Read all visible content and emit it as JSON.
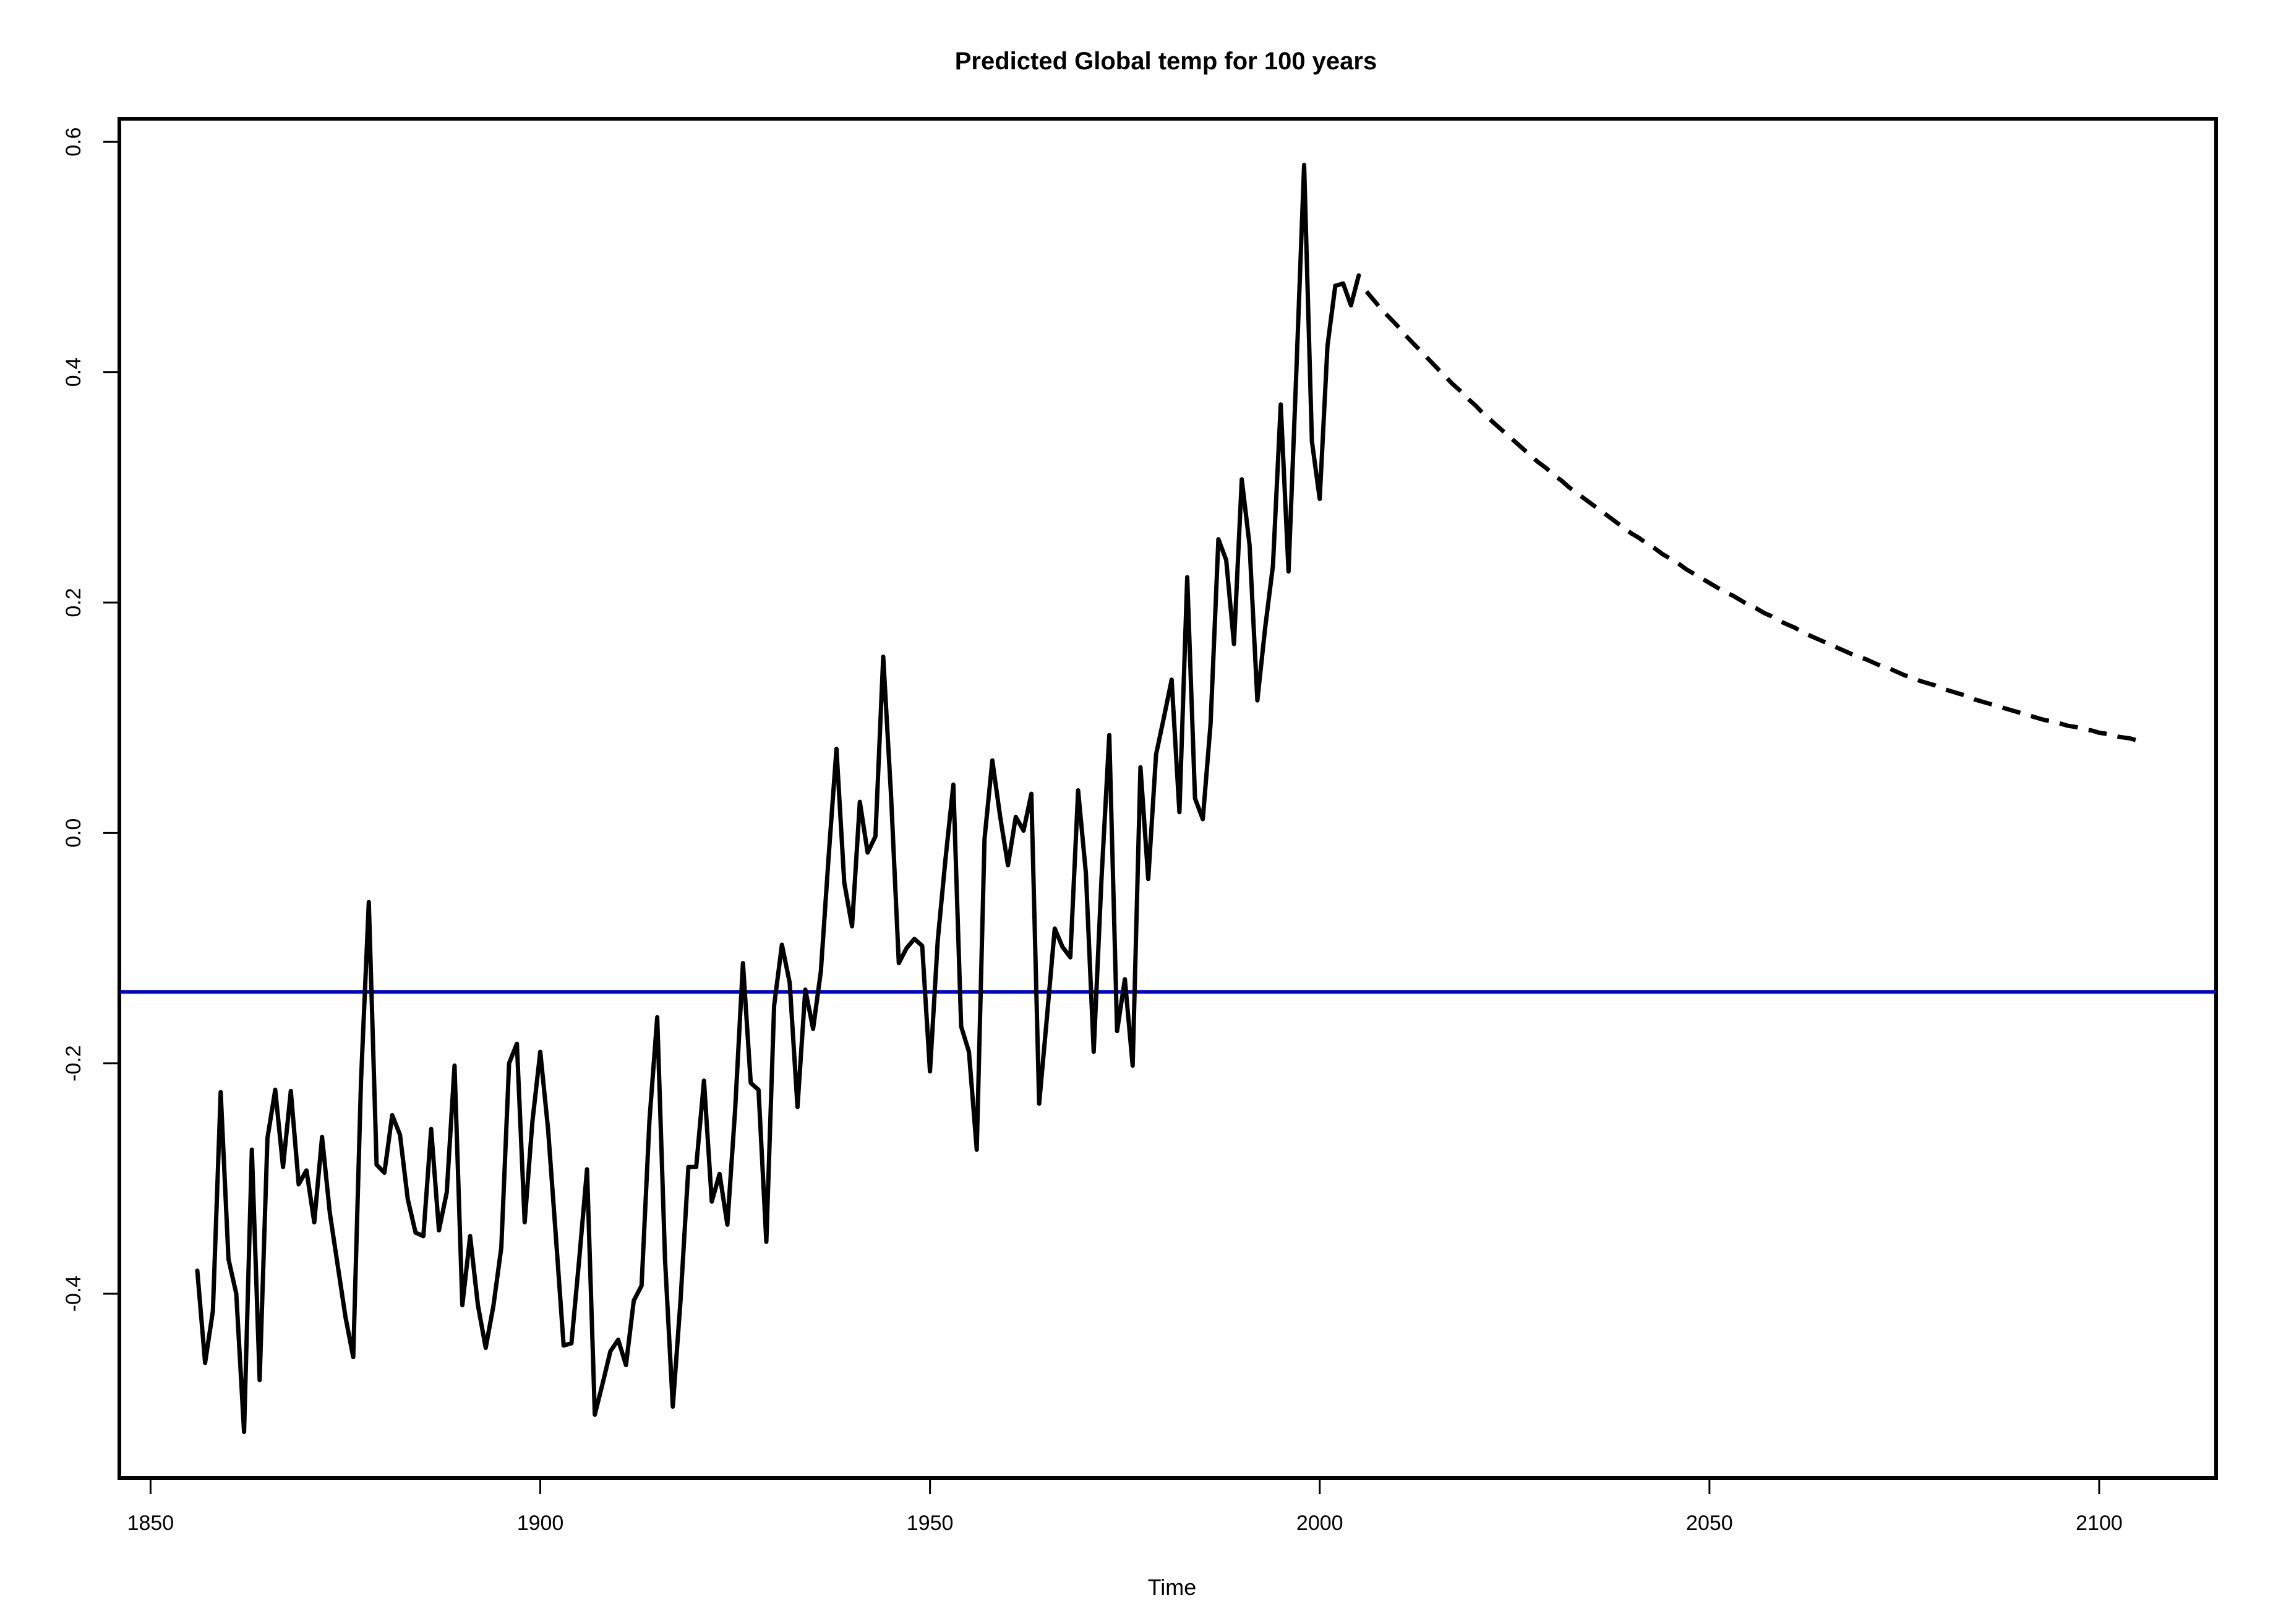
{
  "chart_data": {
    "type": "line",
    "title": "Predicted Global temp for 100 years",
    "xlabel": "Time",
    "ylabel": "",
    "xlim": [
      1846,
      2115
    ],
    "ylim": [
      -0.56,
      0.62
    ],
    "x_ticks": [
      {
        "value": 1850,
        "label": "1850"
      },
      {
        "value": 1900,
        "label": "1900"
      },
      {
        "value": 1950,
        "label": "1950"
      },
      {
        "value": 2000,
        "label": "2000"
      },
      {
        "value": 2050,
        "label": "2050"
      },
      {
        "value": 2100,
        "label": "2100"
      }
    ],
    "y_ticks": [
      {
        "value": -0.4,
        "label": "-0.4"
      },
      {
        "value": -0.2,
        "label": "-0.2"
      },
      {
        "value": 0.0,
        "label": "0.0"
      },
      {
        "value": 0.2,
        "label": "0.2"
      },
      {
        "value": 0.4,
        "label": "0.4"
      },
      {
        "value": 0.6,
        "label": "0.6"
      }
    ],
    "grid": false,
    "legend": "none",
    "series": [
      {
        "style": "solid",
        "color": "#000000",
        "start_year": 1856,
        "values": [
          -0.38,
          -0.46,
          -0.415,
          -0.225,
          -0.37,
          -0.4,
          -0.52,
          -0.275,
          -0.475,
          -0.265,
          -0.223,
          -0.29,
          -0.224,
          -0.305,
          -0.293,
          -0.338,
          -0.264,
          -0.33,
          -0.375,
          -0.42,
          -0.455,
          -0.215,
          -0.06,
          -0.288,
          -0.295,
          -0.245,
          -0.262,
          -0.318,
          -0.347,
          -0.35,
          -0.257,
          -0.345,
          -0.312,
          -0.202,
          -0.41,
          -0.35,
          -0.41,
          -0.447,
          -0.41,
          -0.36,
          -0.2,
          -0.183,
          -0.338,
          -0.25,
          -0.19,
          -0.257,
          -0.35,
          -0.445,
          -0.443,
          -0.37,
          -0.292,
          -0.505,
          -0.478,
          -0.45,
          -0.44,
          -0.462,
          -0.406,
          -0.393,
          -0.25,
          -0.16,
          -0.37,
          -0.498,
          -0.405,
          -0.29,
          -0.29,
          -0.215,
          -0.32,
          -0.296,
          -0.34,
          -0.24,
          -0.113,
          -0.217,
          -0.223,
          -0.355,
          -0.15,
          -0.097,
          -0.13,
          -0.238,
          -0.136,
          -0.17,
          -0.12,
          -0.02,
          0.073,
          -0.043,
          -0.081,
          0.027,
          -0.017,
          -0.003,
          0.153,
          0.033,
          -0.113,
          -0.1,
          -0.092,
          -0.098,
          -0.207,
          -0.093,
          -0.022,
          0.042,
          -0.168,
          -0.19,
          -0.275,
          -0.005,
          0.063,
          0.014,
          -0.028,
          0.014,
          0.002,
          0.034,
          -0.235,
          -0.16,
          -0.083,
          -0.099,
          -0.108,
          0.037,
          -0.035,
          -0.19,
          -0.04,
          0.085,
          -0.172,
          -0.127,
          -0.202,
          0.057,
          -0.04,
          0.068,
          0.1,
          0.133,
          0.018,
          0.222,
          0.03,
          0.012,
          0.095,
          0.255,
          0.237,
          0.164,
          0.307,
          0.25,
          0.115,
          0.178,
          0.232,
          0.372,
          0.227,
          0.4,
          0.58,
          0.34,
          0.29,
          0.423,
          0.475,
          0.477,
          0.458,
          0.484
        ]
      },
      {
        "style": "dashed",
        "color": "#000000",
        "start_year": 2006,
        "values": [
          0.47,
          0.462,
          0.454,
          0.447,
          0.44,
          0.432,
          0.425,
          0.418,
          0.411,
          0.404,
          0.397,
          0.39,
          0.384,
          0.377,
          0.371,
          0.364,
          0.358,
          0.352,
          0.346,
          0.34,
          0.334,
          0.328,
          0.322,
          0.317,
          0.311,
          0.306,
          0.3,
          0.295,
          0.29,
          0.285,
          0.28,
          0.275,
          0.27,
          0.265,
          0.26,
          0.256,
          0.251,
          0.247,
          0.242,
          0.238,
          0.234,
          0.229,
          0.225,
          0.221,
          0.217,
          0.213,
          0.209,
          0.206,
          0.202,
          0.198,
          0.195,
          0.191,
          0.188,
          0.184,
          0.181,
          0.178,
          0.174,
          0.171,
          0.168,
          0.165,
          0.162,
          0.159,
          0.156,
          0.153,
          0.151,
          0.148,
          0.145,
          0.143,
          0.14,
          0.137,
          0.135,
          0.132,
          0.13,
          0.128,
          0.125,
          0.123,
          0.121,
          0.119,
          0.116,
          0.114,
          0.112,
          0.11,
          0.108,
          0.106,
          0.104,
          0.102,
          0.1,
          0.098,
          0.097,
          0.095,
          0.093,
          0.092,
          0.09,
          0.089,
          0.087,
          0.086,
          0.084,
          0.083,
          0.082,
          0.08
        ]
      }
    ],
    "reference_lines": [
      {
        "orientation": "horizontal",
        "y": -0.138,
        "color": "#0000cc"
      }
    ]
  }
}
